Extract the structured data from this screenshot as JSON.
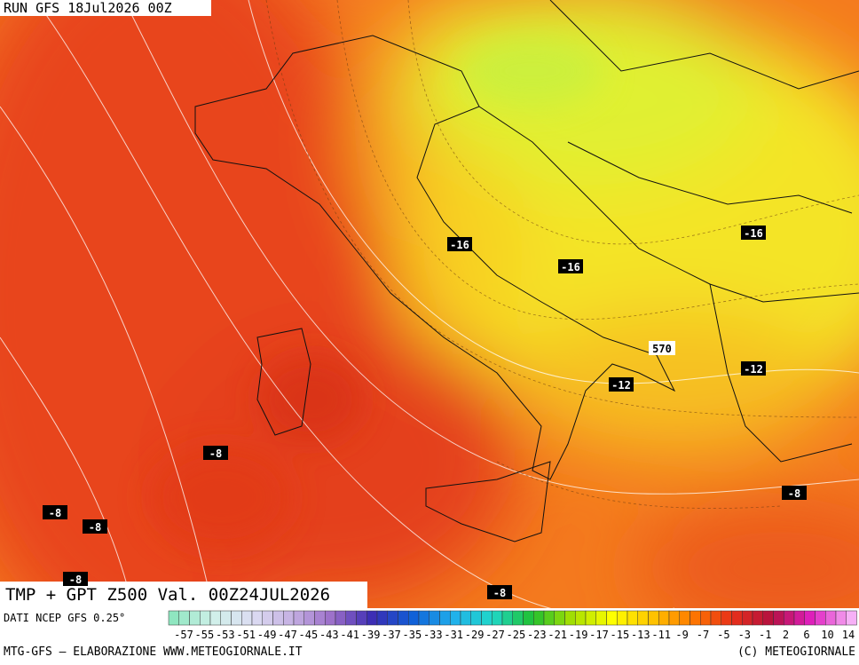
{
  "header": {
    "run": "RUN GFS 18Jul2026 00Z"
  },
  "map": {
    "title": "TMP + GPT Z500 Val. 00Z24JUL2026",
    "contour_labels": [
      -16,
      -16,
      -16,
      570,
      -12,
      -12,
      -8,
      -8,
      -8,
      -8,
      -8,
      -8
    ]
  },
  "legend": {
    "source": "DATI NCEP GFS 0.25°",
    "labels": [
      -57,
      -55,
      -53,
      -51,
      -49,
      -47,
      -45,
      -43,
      -41,
      -39,
      -37,
      -35,
      -33,
      -31,
      -29,
      -27,
      -25,
      -23,
      -21,
      -19,
      -17,
      -15,
      -13,
      -11,
      -9,
      -7,
      -5,
      -3,
      -1,
      2,
      6,
      10,
      14
    ],
    "colors": [
      "#8fe6c0",
      "#d0f0ea",
      "#dcdcf2",
      "#c4aee2",
      "#9a6cc8",
      "#3a2cb4",
      "#1060d8",
      "#20b0ec",
      "#20d8c8",
      "#20c030",
      "#a8e000",
      "#ffff00",
      "#ffc400",
      "#ff7a00",
      "#e83018",
      "#b41040",
      "#e020c0",
      "#f6b0f6"
    ]
  },
  "footer": {
    "left": "MTG-GFS — ELABORAZIONE WWW.METEOGIORNALE.IT",
    "right": "(C) METEOGIORNALE"
  }
}
